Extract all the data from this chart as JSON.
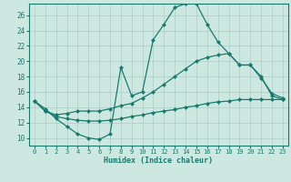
{
  "xlabel": "Humidex (Indice chaleur)",
  "background_color": "#cce8e0",
  "line_color": "#1a7a6e",
  "grid_color": "#aaccC4",
  "x_ticks": [
    0,
    1,
    2,
    3,
    4,
    5,
    6,
    7,
    8,
    9,
    10,
    11,
    12,
    13,
    14,
    15,
    16,
    17,
    18,
    19,
    20,
    21,
    22,
    23
  ],
  "y_ticks": [
    10,
    12,
    14,
    16,
    18,
    20,
    22,
    24,
    26
  ],
  "xlim": [
    -0.5,
    23.5
  ],
  "ylim": [
    9.0,
    27.5
  ],
  "series1_x": [
    0,
    1,
    2,
    3,
    4,
    5,
    6,
    7,
    8,
    9,
    10,
    11,
    12,
    13,
    14,
    15,
    16,
    17,
    18,
    19,
    20,
    21,
    22,
    23
  ],
  "series1_y": [
    14.8,
    13.8,
    12.5,
    11.5,
    10.5,
    10.0,
    9.8,
    10.5,
    19.2,
    15.5,
    16.0,
    22.8,
    24.8,
    27.0,
    27.5,
    27.5,
    24.8,
    22.5,
    21.0,
    19.5,
    19.5,
    17.8,
    15.8,
    15.2
  ],
  "series2_x": [
    0,
    1,
    2,
    3,
    4,
    5,
    6,
    7,
    8,
    9,
    10,
    11,
    12,
    13,
    14,
    15,
    16,
    17,
    18,
    19,
    20,
    21,
    22,
    23
  ],
  "series2_y": [
    14.8,
    13.5,
    13.0,
    13.2,
    13.5,
    13.5,
    13.5,
    13.8,
    14.2,
    14.5,
    15.2,
    16.0,
    17.0,
    18.0,
    19.0,
    20.0,
    20.5,
    20.8,
    21.0,
    19.5,
    19.5,
    18.0,
    15.5,
    15.0
  ],
  "series3_x": [
    0,
    1,
    2,
    3,
    4,
    5,
    6,
    7,
    8,
    9,
    10,
    11,
    12,
    13,
    14,
    15,
    16,
    17,
    18,
    19,
    20,
    21,
    22,
    23
  ],
  "series3_y": [
    14.8,
    13.5,
    12.8,
    12.5,
    12.3,
    12.2,
    12.2,
    12.3,
    12.5,
    12.8,
    13.0,
    13.3,
    13.5,
    13.7,
    14.0,
    14.2,
    14.5,
    14.7,
    14.8,
    15.0,
    15.0,
    15.0,
    15.0,
    15.0
  ]
}
